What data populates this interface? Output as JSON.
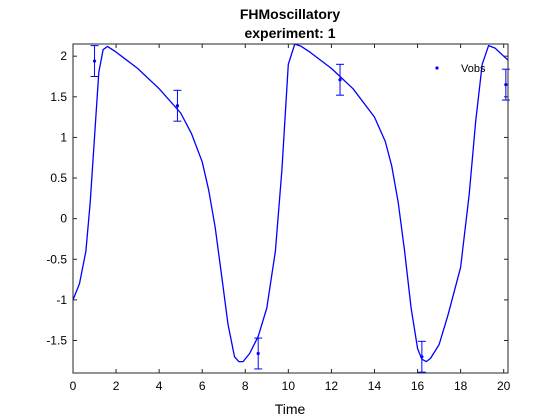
{
  "chart_data": {
    "type": "line",
    "title": "FHMoscillatory",
    "subtitle": "experiment: 1",
    "xlabel": "Time",
    "ylabel": "",
    "xlim": [
      0,
      20.2
    ],
    "ylim": [
      -1.9,
      2.15
    ],
    "xticks": [
      0,
      2,
      4,
      6,
      8,
      10,
      12,
      14,
      16,
      18,
      20
    ],
    "xtick_labels": [
      "0",
      "2",
      "4",
      "6",
      "8",
      "10",
      "12",
      "14",
      "16",
      "18",
      "20"
    ],
    "yticks": [
      -1.5,
      -1,
      -0.5,
      0,
      0.5,
      1,
      1.5,
      2
    ],
    "ytick_labels": [
      "-1.5",
      "-1",
      "-0.5",
      "0",
      "0.5",
      "1",
      "1.5",
      "2"
    ],
    "grid": false,
    "legend_position": "top-right",
    "legend": [
      "Vobs"
    ],
    "line_color": "#0000ff",
    "series": [
      {
        "name": "",
        "style": "line",
        "x": [
          0,
          0.3,
          0.6,
          0.8,
          1.0,
          1.2,
          1.4,
          1.6,
          2.0,
          3.0,
          4.0,
          5.0,
          5.5,
          6.0,
          6.3,
          6.6,
          6.9,
          7.2,
          7.5,
          7.7,
          7.9,
          8.2,
          8.6,
          9.0,
          9.4,
          9.7,
          10.0,
          10.3,
          10.6,
          11.0,
          12.0,
          13.0,
          14.0,
          14.5,
          14.8,
          15.1,
          15.4,
          15.7,
          16.0,
          16.2,
          16.4,
          16.6,
          17.0,
          17.4,
          18.0,
          18.4,
          18.7,
          19.0,
          19.3,
          19.6,
          20.0,
          20.2
        ],
        "y": [
          -1.0,
          -0.8,
          -0.4,
          0.2,
          1.0,
          1.8,
          2.08,
          2.12,
          2.05,
          1.85,
          1.6,
          1.3,
          1.05,
          0.7,
          0.35,
          -0.1,
          -0.7,
          -1.3,
          -1.7,
          -1.76,
          -1.76,
          -1.66,
          -1.45,
          -1.1,
          -0.4,
          0.6,
          1.9,
          2.15,
          2.12,
          2.05,
          1.85,
          1.6,
          1.25,
          0.95,
          0.65,
          0.2,
          -0.4,
          -1.1,
          -1.6,
          -1.73,
          -1.76,
          -1.72,
          -1.55,
          -1.2,
          -0.6,
          0.3,
          1.2,
          1.9,
          2.13,
          2.1,
          2.0,
          1.95
        ]
      },
      {
        "name": "Vobs",
        "style": "errorbar",
        "x": [
          1.0,
          4.85,
          8.6,
          12.4,
          16.2,
          20.1
        ],
        "y": [
          1.94,
          1.39,
          -1.66,
          1.71,
          -1.7,
          1.65
        ],
        "err": [
          0.19,
          0.19,
          0.19,
          0.19,
          0.19,
          0.19
        ]
      }
    ]
  }
}
